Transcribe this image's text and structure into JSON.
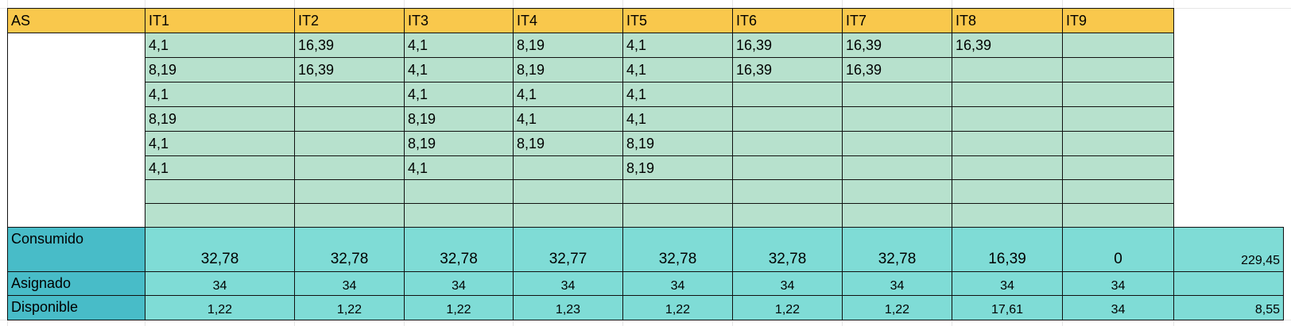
{
  "header": {
    "label": "AS",
    "columns": [
      "IT1",
      "IT2",
      "IT3",
      "IT4",
      "IT5",
      "IT6",
      "IT7",
      "IT8",
      "IT9"
    ]
  },
  "rows": [
    [
      "4,1",
      "16,39",
      "4,1",
      "8,19",
      "4,1",
      "16,39",
      "16,39",
      "16,39",
      ""
    ],
    [
      "8,19",
      "16,39",
      "4,1",
      "8,19",
      "4,1",
      "16,39",
      "16,39",
      "",
      ""
    ],
    [
      "4,1",
      "",
      "4,1",
      "4,1",
      "4,1",
      "",
      "",
      "",
      ""
    ],
    [
      "8,19",
      "",
      "8,19",
      "4,1",
      "4,1",
      "",
      "",
      "",
      ""
    ],
    [
      "4,1",
      "",
      "8,19",
      "8,19",
      "8,19",
      "",
      "",
      "",
      ""
    ],
    [
      "4,1",
      "",
      "4,1",
      "",
      "8,19",
      "",
      "",
      "",
      ""
    ],
    [
      "",
      "",
      "",
      "",
      "",
      "",
      "",
      "",
      ""
    ],
    [
      "",
      "",
      "",
      "",
      "",
      "",
      "",
      "",
      ""
    ]
  ],
  "summary": {
    "consumido": {
      "label": "Consumido",
      "values": [
        "32,78",
        "32,78",
        "32,78",
        "32,77",
        "32,78",
        "32,78",
        "32,78",
        "16,39",
        "0"
      ],
      "total": "229,45"
    },
    "asignado": {
      "label": "Asignado",
      "values": [
        "34",
        "34",
        "34",
        "34",
        "34",
        "34",
        "34",
        "34",
        "34"
      ],
      "total": ""
    },
    "disponible": {
      "label": "Disponible",
      "values": [
        "1,22",
        "1,22",
        "1,22",
        "1,23",
        "1,22",
        "1,22",
        "1,22",
        "17,61",
        "34"
      ],
      "total": "8,55"
    }
  },
  "colors": {
    "header_bg": "#f9c84c",
    "data_bg": "#b7e1cd",
    "summary_bg": "#7fdcd6",
    "summary_label_bg": "#48bcc8"
  }
}
